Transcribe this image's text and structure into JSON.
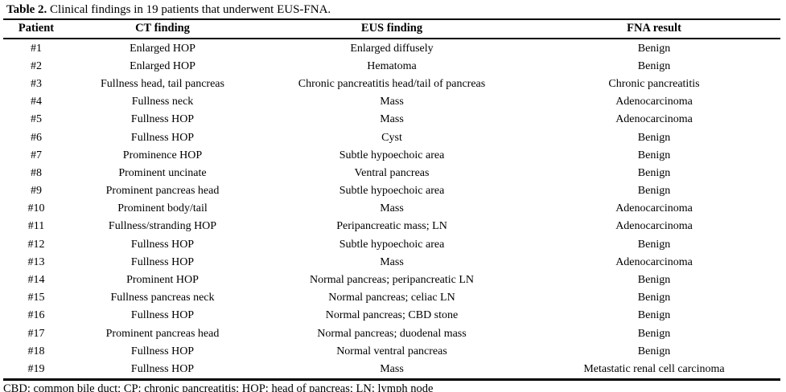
{
  "table": {
    "title_bold": "Table 2.",
    "title_rest": " Clinical findings in 19 patients that underwent EUS-FNA.",
    "columns": [
      "Patient",
      "CT finding",
      "EUS finding",
      "FNA result"
    ],
    "rows": [
      [
        "#1",
        "Enlarged HOP",
        "Enlarged diffusely",
        "Benign"
      ],
      [
        "#2",
        "Enlarged HOP",
        "Hematoma",
        "Benign"
      ],
      [
        "#3",
        "Fullness head, tail pancreas",
        "Chronic pancreatitis head/tail of pancreas",
        "Chronic pancreatitis"
      ],
      [
        "#4",
        "Fullness neck",
        "Mass",
        "Adenocarcinoma"
      ],
      [
        "#5",
        "Fullness HOP",
        "Mass",
        "Adenocarcinoma"
      ],
      [
        "#6",
        "Fullness HOP",
        "Cyst",
        "Benign"
      ],
      [
        "#7",
        "Prominence HOP",
        "Subtle hypoechoic area",
        "Benign"
      ],
      [
        "#8",
        "Prominent uncinate",
        "Ventral pancreas",
        "Benign"
      ],
      [
        "#9",
        "Prominent pancreas head",
        "Subtle hypoechoic area",
        "Benign"
      ],
      [
        "#10",
        "Prominent body/tail",
        "Mass",
        "Adenocarcinoma"
      ],
      [
        "#11",
        "Fullness/stranding HOP",
        "Peripancreatic mass; LN",
        "Adenocarcinoma"
      ],
      [
        "#12",
        "Fullness HOP",
        "Subtle hypoechoic area",
        "Benign"
      ],
      [
        "#13",
        "Fullness HOP",
        "Mass",
        "Adenocarcinoma"
      ],
      [
        "#14",
        "Prominent HOP",
        "Normal pancreas; peripancreatic LN",
        "Benign"
      ],
      [
        "#15",
        "Fullness pancreas neck",
        "Normal pancreas; celiac LN",
        "Benign"
      ],
      [
        "#16",
        "Fullness HOP",
        "Normal pancreas; CBD stone",
        "Benign"
      ],
      [
        "#17",
        "Prominent pancreas head",
        "Normal pancreas; duodenal mass",
        "Benign"
      ],
      [
        "#18",
        "Fullness HOP",
        "Normal ventral pancreas",
        "Benign"
      ],
      [
        "#19",
        "Fullness HOP",
        "Mass",
        "Metastatic renal cell carcinoma"
      ]
    ],
    "footnote": "CBD: common bile duct; CP: chronic pancreatitis; HOP: head of pancreas; LN: lymph node"
  }
}
